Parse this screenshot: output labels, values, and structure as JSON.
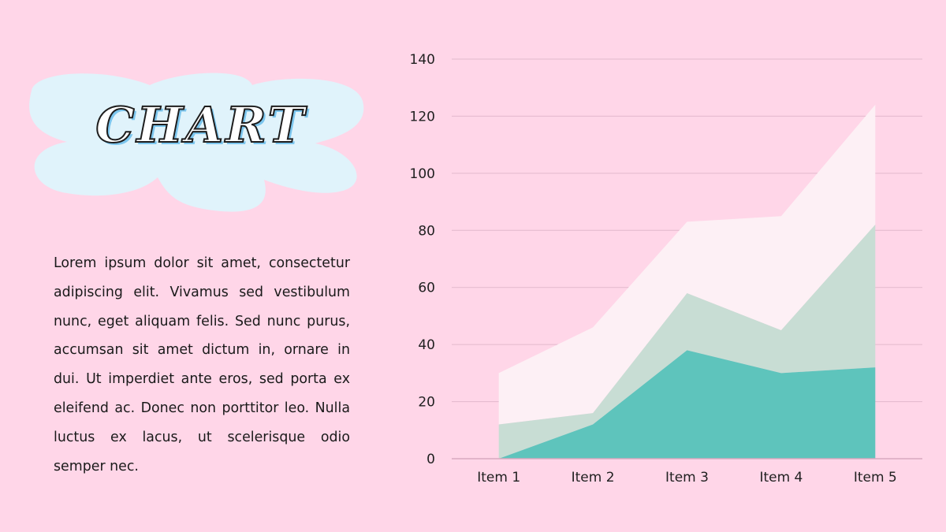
{
  "slide": {
    "title": "CHART",
    "body": "Lorem ipsum dolor sit amet, consectetur adipiscing elit. Vivamus sed vestibulum nunc, eget aliquam felis. Sed nunc purus, accumsan sit amet dictum in, ornare in dui. Ut imperdiet ante eros, sed porta ex eleifend ac. Donec non porttitor leo. Nulla luctus ex lacus, ut scelerisque odio semper nec."
  },
  "colors": {
    "background": "#ffd6e8",
    "title_blob": "#e0f3fb",
    "gridline": "#e2b9cc",
    "axis_line": "#d8a9c0"
  },
  "chart_data": {
    "type": "area",
    "stacked": true,
    "categories": [
      "Item 1",
      "Item 2",
      "Item 3",
      "Item 4",
      "Item 5"
    ],
    "series": [
      {
        "values": [
          0,
          12,
          38,
          30,
          32
        ],
        "color": "#5ec4bc"
      },
      {
        "values": [
          12,
          4,
          20,
          15,
          50
        ],
        "color": "#c8ddd4"
      },
      {
        "values": [
          18,
          30,
          25,
          40,
          42
        ],
        "color": "#fdf0f5"
      }
    ],
    "ylim": [
      0,
      140
    ],
    "yticks": [
      0,
      20,
      40,
      60,
      80,
      100,
      120,
      140
    ],
    "grid": true,
    "legend": "none"
  }
}
